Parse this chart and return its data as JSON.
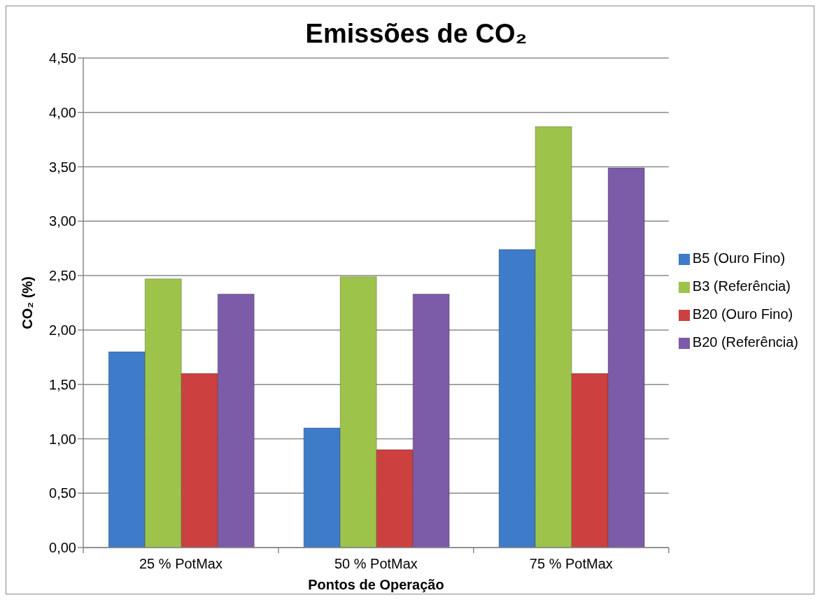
{
  "chart_data": {
    "type": "bar",
    "title": "Emissões de CO₂",
    "xlabel": "Pontos de Operação",
    "ylabel": "CO₂ (%)",
    "categories": [
      "25 % PotMax",
      "50 % PotMax",
      "75 % PotMax"
    ],
    "series": [
      {
        "name": "B5 (Ouro Fino)",
        "color": "#3e7bc8",
        "values": [
          1.8,
          1.1,
          2.74
        ]
      },
      {
        "name": "B3 (Referência)",
        "color": "#9dc34b",
        "values": [
          2.47,
          2.49,
          3.87
        ]
      },
      {
        "name": "B20 (Ouro Fino)",
        "color": "#cc4140",
        "values": [
          1.6,
          0.9,
          1.6
        ]
      },
      {
        "name": "B20 (Referência)",
        "color": "#7c5ba8",
        "values": [
          2.33,
          2.33,
          3.49
        ]
      }
    ],
    "ylim": [
      0,
      4.5
    ],
    "yticks": [
      {
        "value": 0,
        "label": "0,00"
      },
      {
        "value": 0.5,
        "label": "0,50"
      },
      {
        "value": 1,
        "label": "1,00"
      },
      {
        "value": 1.5,
        "label": "1,50"
      },
      {
        "value": 2,
        "label": "2,00"
      },
      {
        "value": 2.5,
        "label": "2,50"
      },
      {
        "value": 3,
        "label": "3,00"
      },
      {
        "value": 3.5,
        "label": "3,50"
      },
      {
        "value": 4,
        "label": "4,00"
      },
      {
        "value": 4.5,
        "label": "4,50"
      }
    ],
    "grid": "y",
    "legend": "right"
  }
}
